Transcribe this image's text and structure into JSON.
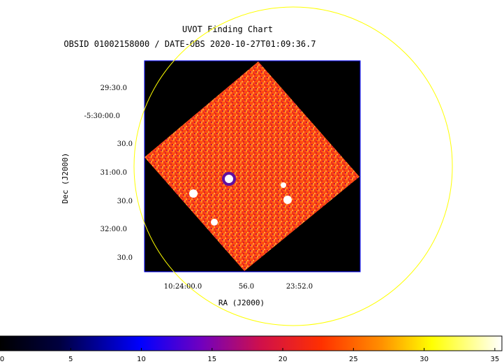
{
  "chart_data": {
    "type": "heatmap",
    "title": "UVOT Finding Chart",
    "subtitle": "OBSID 01002158000 / DATE-OBS 2020-10-27T01:09:36.7",
    "xlabel": "RA (J2000)",
    "ylabel": "Dec (J2000)",
    "ra_ticks": [
      "10:24:00.0",
      "56.0",
      "23:52.0"
    ],
    "dec_ticks": [
      "29:30.0",
      "-5:30:00.0",
      "30.0",
      "31:00.0",
      "30.0",
      "32:00.0",
      "30.0"
    ],
    "colorbar": {
      "ticks": [
        "0",
        "5",
        "10",
        "15",
        "20",
        "25",
        "30",
        "35"
      ],
      "range": [
        0,
        35.5
      ],
      "colormap": [
        "#000000",
        "#0000ff",
        "#ff0000",
        "#ffff00",
        "#ffffff"
      ]
    },
    "sources_count": 5,
    "circle_color": "#ffff00",
    "frame_color": "#0000ff"
  }
}
